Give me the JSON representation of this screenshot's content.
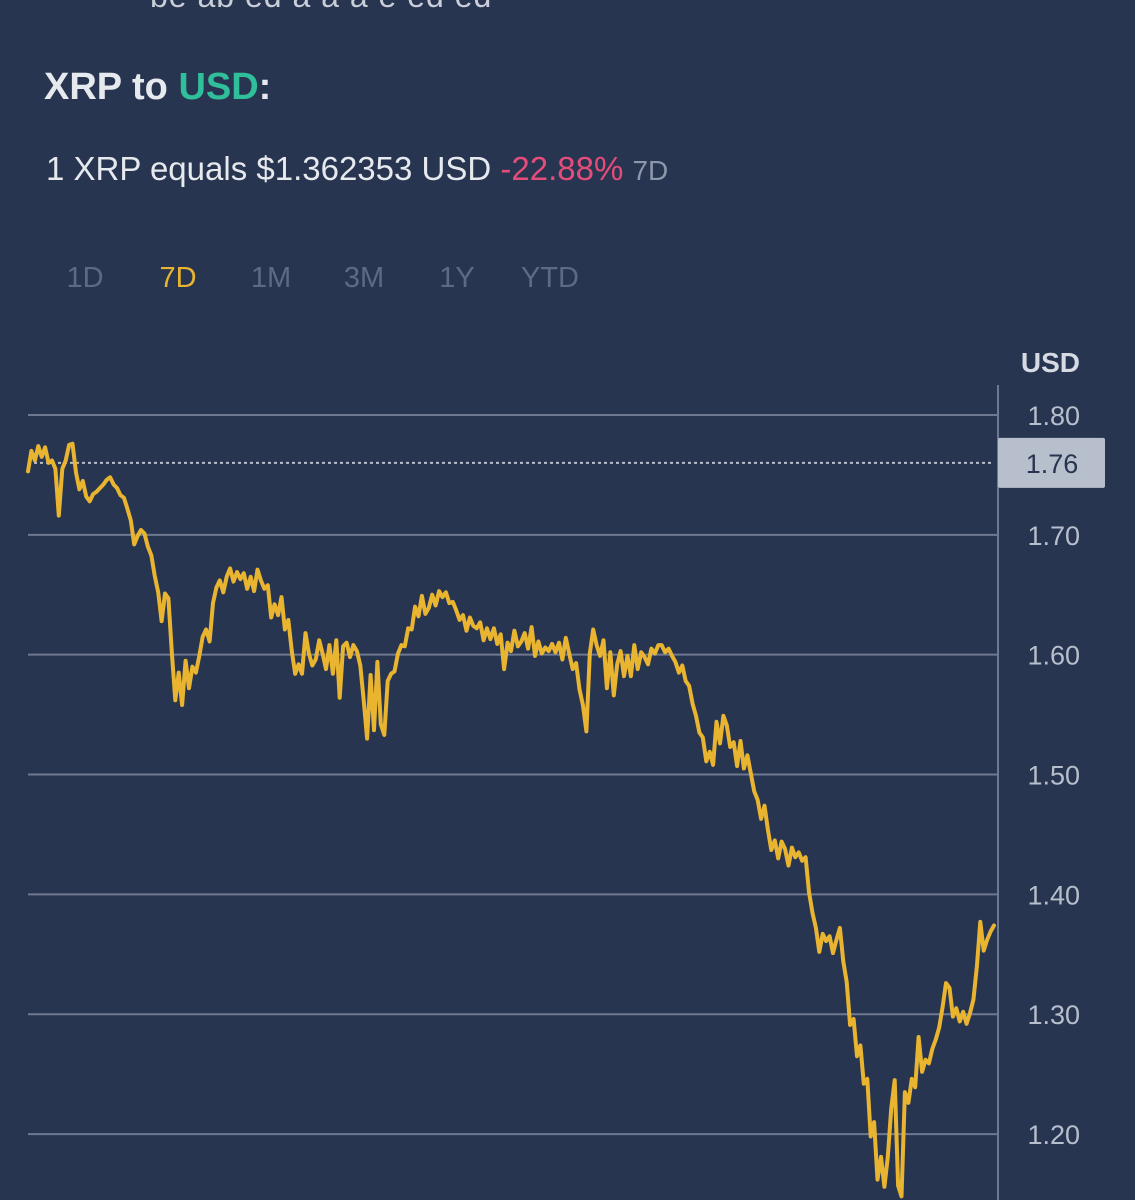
{
  "header": {
    "cutoff_text": "be ab  ed  a  a  a   e    ed   ed",
    "title_base": "XRP to ",
    "title_quote": "USD",
    "title_colon": ":",
    "rate_text": "1 XRP equals $1.362353 USD",
    "change_text": "-22.88%",
    "change_period": "7D"
  },
  "tabs": [
    {
      "label": "1D",
      "active": false
    },
    {
      "label": "7D",
      "active": true
    },
    {
      "label": "1M",
      "active": false
    },
    {
      "label": "3M",
      "active": false
    },
    {
      "label": "1Y",
      "active": false
    },
    {
      "label": "YTD",
      "active": false
    }
  ],
  "colors": {
    "background": "#283550",
    "line": "#e9b530",
    "grid": "#6e7890",
    "accent": "#2fbf9a",
    "negative": "#e44d7a",
    "price_tag": "#b8bfcc"
  },
  "chart_data": {
    "type": "line",
    "ylabel": "USD",
    "ylim": [
      1.145,
      1.825
    ],
    "yticks": [
      1.8,
      1.7,
      1.6,
      1.5,
      1.4,
      1.3,
      1.2
    ],
    "ytick_labels": [
      "1.80",
      "1.70",
      "1.60",
      "1.50",
      "1.40",
      "1.30",
      "1.20"
    ],
    "reference_price": 1.76,
    "reference_label": "1.76",
    "grid": true,
    "series": [
      {
        "values": [
          1.753,
          1.77,
          1.762,
          1.774,
          1.765,
          1.773,
          1.76,
          1.762,
          1.755,
          1.716,
          1.755,
          1.762,
          1.775,
          1.776,
          1.752,
          1.738,
          1.745,
          1.732,
          1.728,
          1.734,
          1.736,
          1.739,
          1.742,
          1.746,
          1.748,
          1.742,
          1.739,
          1.733,
          1.731,
          1.722,
          1.712,
          1.692,
          1.699,
          1.704,
          1.701,
          1.69,
          1.683,
          1.666,
          1.652,
          1.628,
          1.651,
          1.647,
          1.601,
          1.562,
          1.585,
          1.558,
          1.595,
          1.572,
          1.59,
          1.585,
          1.599,
          1.615,
          1.621,
          1.611,
          1.643,
          1.656,
          1.662,
          1.652,
          1.665,
          1.672,
          1.661,
          1.669,
          1.663,
          1.668,
          1.655,
          1.665,
          1.653,
          1.671,
          1.662,
          1.655,
          1.658,
          1.631,
          1.642,
          1.633,
          1.648,
          1.621,
          1.629,
          1.603,
          1.584,
          1.592,
          1.584,
          1.618,
          1.601,
          1.591,
          1.596,
          1.612,
          1.601,
          1.588,
          1.608,
          1.584,
          1.612,
          1.564,
          1.607,
          1.61,
          1.598,
          1.608,
          1.603,
          1.591,
          1.562,
          1.53,
          1.583,
          1.537,
          1.594,
          1.542,
          1.533,
          1.578,
          1.584,
          1.586,
          1.601,
          1.608,
          1.607,
          1.622,
          1.621,
          1.64,
          1.632,
          1.649,
          1.634,
          1.639,
          1.65,
          1.641,
          1.653,
          1.648,
          1.652,
          1.643,
          1.644,
          1.637,
          1.629,
          1.633,
          1.62,
          1.631,
          1.624,
          1.622,
          1.627,
          1.612,
          1.622,
          1.613,
          1.622,
          1.609,
          1.617,
          1.588,
          1.61,
          1.603,
          1.62,
          1.607,
          1.611,
          1.618,
          1.605,
          1.623,
          1.599,
          1.611,
          1.601,
          1.606,
          1.603,
          1.609,
          1.602,
          1.61,
          1.596,
          1.614,
          1.601,
          1.588,
          1.593,
          1.571,
          1.558,
          1.536,
          1.601,
          1.621,
          1.608,
          1.599,
          1.612,
          1.572,
          1.602,
          1.566,
          1.592,
          1.603,
          1.582,
          1.599,
          1.582,
          1.608,
          1.588,
          1.602,
          1.598,
          1.592,
          1.605,
          1.601,
          1.608,
          1.608,
          1.602,
          1.605,
          1.599,
          1.594,
          1.585,
          1.591,
          1.578,
          1.574,
          1.559,
          1.549,
          1.535,
          1.531,
          1.511,
          1.519,
          1.508,
          1.544,
          1.526,
          1.549,
          1.541,
          1.523,
          1.527,
          1.507,
          1.528,
          1.505,
          1.516,
          1.501,
          1.486,
          1.479,
          1.463,
          1.474,
          1.454,
          1.437,
          1.445,
          1.43,
          1.444,
          1.438,
          1.424,
          1.439,
          1.431,
          1.435,
          1.428,
          1.431,
          1.402,
          1.385,
          1.372,
          1.352,
          1.367,
          1.361,
          1.365,
          1.351,
          1.362,
          1.372,
          1.344,
          1.327,
          1.291,
          1.296,
          1.265,
          1.274,
          1.242,
          1.246,
          1.198,
          1.21,
          1.162,
          1.181,
          1.156,
          1.181,
          1.221,
          1.245,
          1.157,
          1.148,
          1.235,
          1.226,
          1.246,
          1.239,
          1.281,
          1.252,
          1.262,
          1.259,
          1.271,
          1.279,
          1.289,
          1.306,
          1.326,
          1.322,
          1.298,
          1.305,
          1.294,
          1.302,
          1.292,
          1.301,
          1.312,
          1.34,
          1.377,
          1.353,
          1.362,
          1.369,
          1.374
        ]
      }
    ]
  }
}
